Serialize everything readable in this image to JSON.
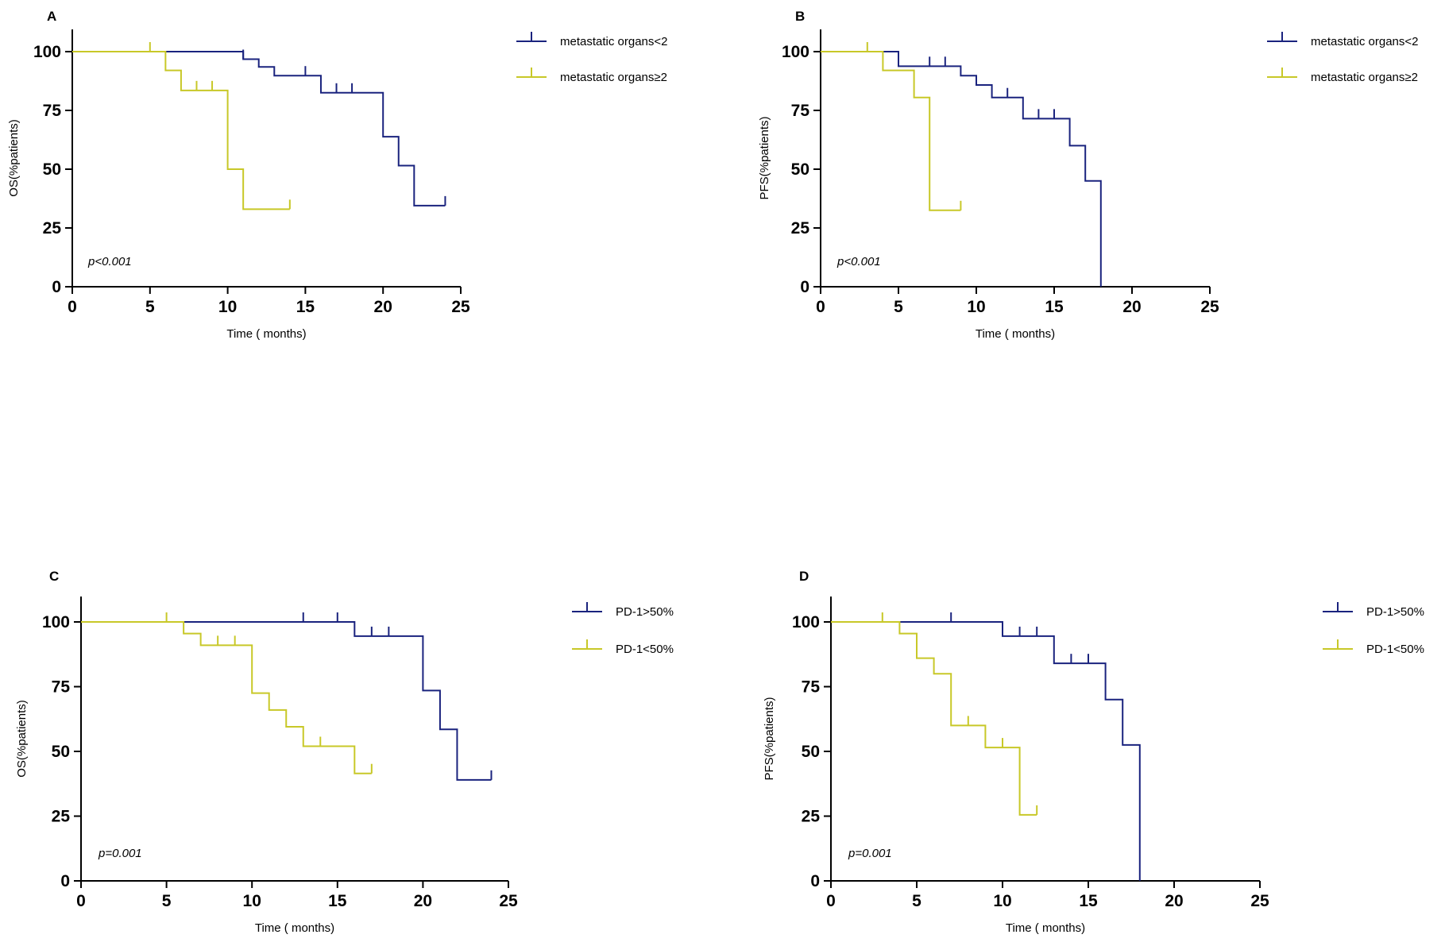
{
  "colors": {
    "group1": "#1a237e",
    "group2": "#c8c828",
    "axis": "#000000"
  },
  "chart_data": [
    {
      "type": "line",
      "subtype": "kaplan-meier",
      "panel": "A",
      "ylabel": "OS(%patients)",
      "xlabel": "Time ( months)",
      "xlim": [
        0,
        25
      ],
      "ylim": [
        0,
        100
      ],
      "xticks": [
        0,
        5,
        10,
        15,
        20,
        25
      ],
      "yticks": [
        0,
        25,
        50,
        75,
        100
      ],
      "annotation": "p<0.001",
      "series": [
        {
          "name": "metastatic organs<2",
          "color": "#1a237e",
          "steps": [
            [
              0,
              100
            ],
            [
              11,
              96.8
            ],
            [
              12,
              93.5
            ],
            [
              13,
              89.8
            ],
            [
              16,
              82.5
            ],
            [
              20,
              63.8
            ],
            [
              21,
              51.5
            ],
            [
              22,
              34.5
            ],
            [
              24,
              34.5
            ]
          ],
          "censors": [
            [
              11,
              96.8
            ],
            [
              15,
              89.8
            ],
            [
              17,
              82.5
            ],
            [
              18,
              82.5
            ],
            [
              24,
              34.5
            ]
          ]
        },
        {
          "name": "metastatic organs≥2",
          "color": "#c8c828",
          "steps": [
            [
              0,
              100
            ],
            [
              6,
              92
            ],
            [
              7,
              83.5
            ],
            [
              10,
              50
            ],
            [
              11,
              33
            ],
            [
              14,
              33
            ]
          ],
          "censors": [
            [
              5,
              100
            ],
            [
              8,
              83.5
            ],
            [
              9,
              83.5
            ],
            [
              14,
              33
            ]
          ]
        }
      ]
    },
    {
      "type": "line",
      "subtype": "kaplan-meier",
      "panel": "B",
      "ylabel": "PFS(%patients)",
      "xlabel": "Time ( months)",
      "xlim": [
        0,
        25
      ],
      "ylim": [
        0,
        100
      ],
      "xticks": [
        0,
        5,
        10,
        15,
        20,
        25
      ],
      "yticks": [
        0,
        25,
        50,
        75,
        100
      ],
      "annotation": "p<0.001",
      "series": [
        {
          "name": "metastatic organs<2",
          "color": "#1a237e",
          "steps": [
            [
              0,
              100
            ],
            [
              5,
              93.8
            ],
            [
              9,
              89.8
            ],
            [
              10,
              85.8
            ],
            [
              11,
              80.5
            ],
            [
              13,
              71.5
            ],
            [
              16,
              60
            ],
            [
              17,
              45
            ],
            [
              18,
              0
            ]
          ],
          "censors": [
            [
              7,
              93.8
            ],
            [
              8,
              93.8
            ],
            [
              12,
              80.5
            ],
            [
              14,
              71.5
            ],
            [
              15,
              71.5
            ]
          ]
        },
        {
          "name": "metastatic organs≥2",
          "color": "#c8c828",
          "steps": [
            [
              0,
              100
            ],
            [
              4,
              92
            ],
            [
              6,
              80.5
            ],
            [
              7,
              32.5
            ],
            [
              9,
              32.5
            ]
          ],
          "censors": [
            [
              3,
              100
            ],
            [
              9,
              32.5
            ]
          ]
        }
      ]
    },
    {
      "type": "line",
      "subtype": "kaplan-meier",
      "panel": "C",
      "ylabel": "OS(%patients)",
      "xlabel": "Time ( months)",
      "xlim": [
        0,
        25
      ],
      "ylim": [
        0,
        100
      ],
      "xticks": [
        0,
        5,
        10,
        15,
        20,
        25
      ],
      "yticks": [
        0,
        25,
        50,
        75,
        100
      ],
      "annotation": "p=0.001",
      "series": [
        {
          "name": "PD-1>50%",
          "color": "#1a237e",
          "steps": [
            [
              0,
              100
            ],
            [
              16,
              94.5
            ],
            [
              20,
              73.5
            ],
            [
              21,
              58.5
            ],
            [
              22,
              39
            ],
            [
              24,
              39
            ]
          ],
          "censors": [
            [
              13,
              100
            ],
            [
              15,
              100
            ],
            [
              17,
              94.5
            ],
            [
              18,
              94.5
            ],
            [
              24,
              39
            ]
          ]
        },
        {
          "name": "PD-1<50%",
          "color": "#c8c828",
          "steps": [
            [
              0,
              100
            ],
            [
              6,
              95.5
            ],
            [
              7,
              91
            ],
            [
              10,
              72.5
            ],
            [
              11,
              66
            ],
            [
              12,
              59.5
            ],
            [
              13,
              52
            ],
            [
              16,
              41.5
            ],
            [
              17,
              41.5
            ]
          ],
          "censors": [
            [
              5,
              100
            ],
            [
              8,
              91
            ],
            [
              9,
              91
            ],
            [
              14,
              52
            ],
            [
              17,
              41.5
            ]
          ]
        }
      ]
    },
    {
      "type": "line",
      "subtype": "kaplan-meier",
      "panel": "D",
      "ylabel": "PFS(%patients)",
      "xlabel": "Time ( months)",
      "xlim": [
        0,
        25
      ],
      "ylim": [
        0,
        100
      ],
      "xticks": [
        0,
        5,
        10,
        15,
        20,
        25
      ],
      "yticks": [
        0,
        25,
        50,
        75,
        100
      ],
      "annotation": "p=0.001",
      "series": [
        {
          "name": "PD-1>50%",
          "color": "#1a237e",
          "steps": [
            [
              0,
              100
            ],
            [
              10,
              94.5
            ],
            [
              13,
              84
            ],
            [
              16,
              70
            ],
            [
              17,
              52.5
            ],
            [
              18,
              0
            ]
          ],
          "censors": [
            [
              7,
              100
            ],
            [
              11,
              94.5
            ],
            [
              12,
              94.5
            ],
            [
              14,
              84
            ],
            [
              15,
              84
            ]
          ]
        },
        {
          "name": "PD-1<50%",
          "color": "#c8c828",
          "steps": [
            [
              0,
              100
            ],
            [
              4,
              95.5
            ],
            [
              5,
              86
            ],
            [
              6,
              80
            ],
            [
              7,
              60
            ],
            [
              9,
              51.5
            ],
            [
              11,
              25.5
            ],
            [
              12,
              25.5
            ]
          ],
          "censors": [
            [
              3,
              100
            ],
            [
              8,
              60
            ],
            [
              10,
              51.5
            ],
            [
              12,
              25.5
            ]
          ]
        }
      ]
    }
  ]
}
